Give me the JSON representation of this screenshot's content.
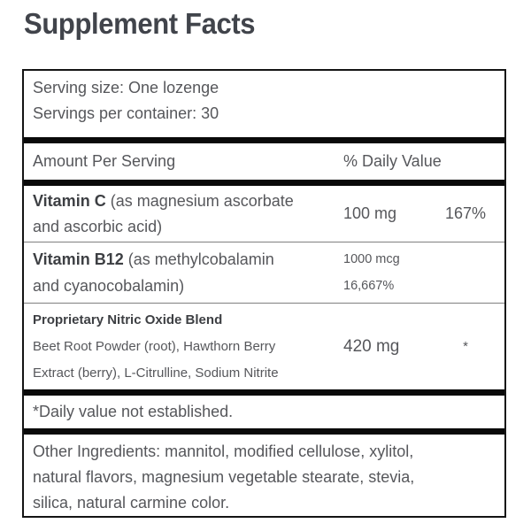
{
  "title": "Supplement Facts",
  "colors": {
    "text": "#56575b",
    "bold_text": "#3d3f43",
    "border": "#141414",
    "thick_bar": "#0a0a0a",
    "thin_rule": "#808080",
    "background": "#ffffff"
  },
  "serving": {
    "lines": [
      "Serving size: One lozenge",
      "Servings per container: 30"
    ]
  },
  "header": {
    "amount_label": "Amount Per Serving",
    "dv_label": "% Daily Value"
  },
  "nutrients": [
    {
      "name_bold": "Vitamin C",
      "name_line1_rest": "(as magnesium ascorbate",
      "name_line2": "and ascorbic acid)",
      "amount": "100 mg",
      "daily_value": "167%"
    },
    {
      "name_bold": "Vitamin B12",
      "name_line1_rest": "(as methylcobalamin",
      "name_line2": "and cyanocobalamin)",
      "amount": "1000 mcg",
      "daily_value": "16,667%"
    },
    {
      "name_bold": "Proprietary Nitric Oxide Blend",
      "desc_line1": "Beet Root Powder (root), Hawthorn Berry",
      "desc_line2": "Extract (berry), L-Citrulline, Sodium Nitrite",
      "amount": "420 mg",
      "daily_value": "*"
    }
  ],
  "footnote": "*Daily value not established.",
  "other_ingredients": {
    "lines": [
      "Other Ingredients: mannitol, modified cellulose, xylitol,",
      "natural flavors, magnesium vegetable stearate, stevia,",
      "silica, natural carmine color."
    ]
  }
}
